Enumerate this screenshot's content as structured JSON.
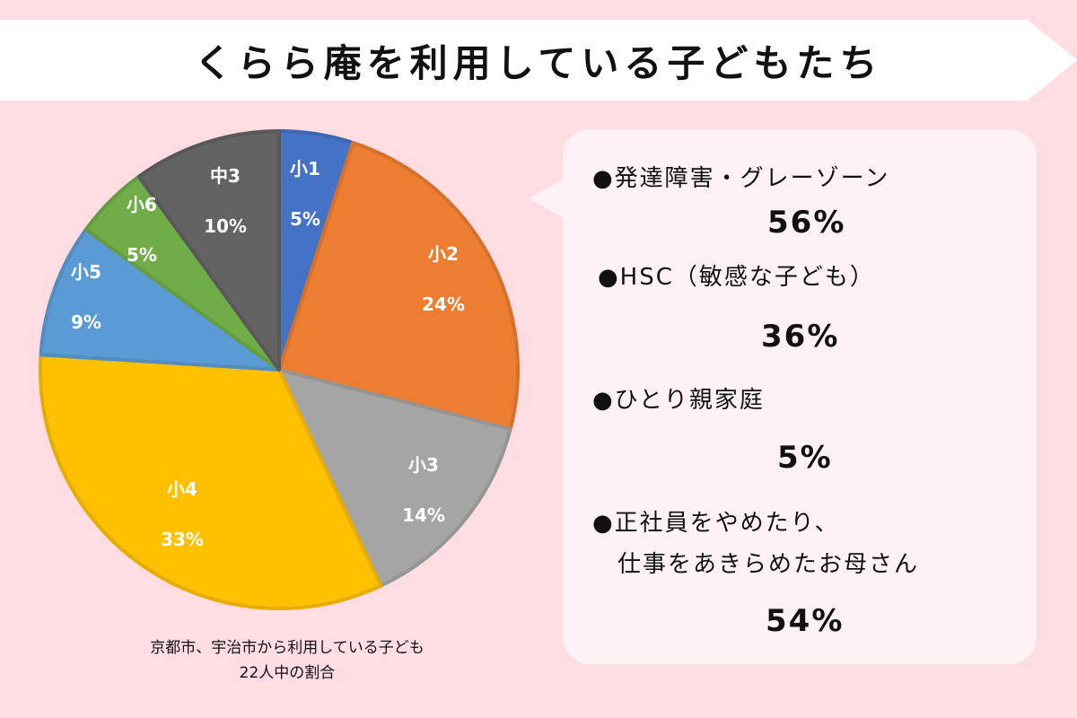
{
  "title": "くらら庵を利用している子どもたち",
  "colors": {
    "background": "#ffdde3",
    "banner": "#ffffff",
    "callout": "#fff2f4"
  },
  "chart_data": {
    "type": "pie",
    "title": "くらら庵を利用している子どもたち",
    "categories": [
      "小1",
      "小2",
      "小3",
      "小4",
      "小5",
      "小6",
      "中3"
    ],
    "values": [
      5,
      24,
      14,
      33,
      9,
      5,
      10
    ],
    "unit": "%",
    "colors": [
      "#4472c4",
      "#ed7d31",
      "#a5a5a5",
      "#ffc000",
      "#5b9bd5",
      "#70ad47",
      "#636363"
    ],
    "start_angle": "12 o'clock, clockwise",
    "caption": "京都市、宇治市から利用している子ども 22人中の割合"
  },
  "pie": {
    "slices": [
      {
        "label": "小1",
        "pct": "5%"
      },
      {
        "label": "小2",
        "pct": "24%"
      },
      {
        "label": "小3",
        "pct": "14%"
      },
      {
        "label": "小4",
        "pct": "33%"
      },
      {
        "label": "小5",
        "pct": "9%"
      },
      {
        "label": "小6",
        "pct": "5%"
      },
      {
        "label": "中3",
        "pct": "10%"
      }
    ]
  },
  "caption": {
    "line1": "京都市、宇治市から利用している子ども",
    "line2": "22人中の割合"
  },
  "stats": [
    {
      "label": "●発達障害・グレーゾーン",
      "value": "56%"
    },
    {
      "label": "●HSC（敏感な子ども）",
      "value": "36%"
    },
    {
      "label": "●ひとり親家庭",
      "value": "5%"
    },
    {
      "label": "●正社員をやめたり、",
      "label2": "仕事をあきらめたお母さん",
      "value": "54%"
    }
  ]
}
